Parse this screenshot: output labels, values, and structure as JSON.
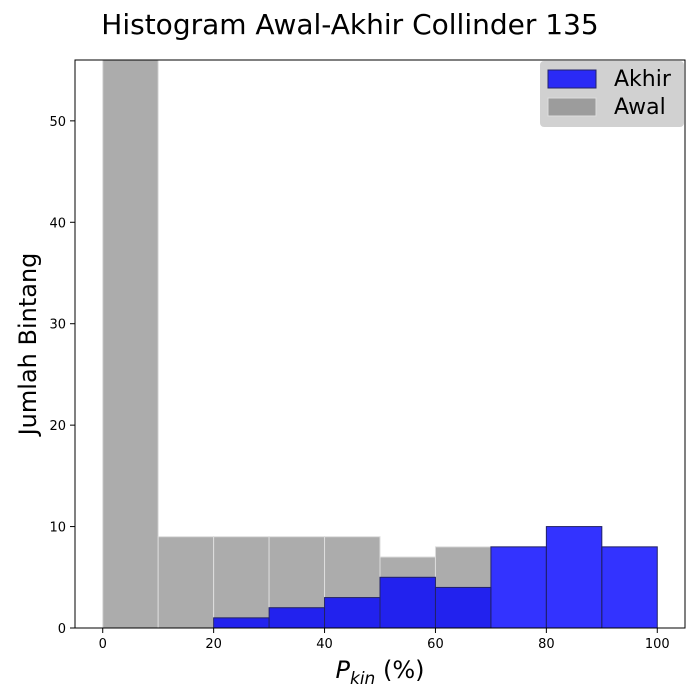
{
  "chart_data": {
    "type": "bar",
    "title": "Histogram Awal-Akhir Collinder 135",
    "xlabel_main": "P",
    "xlabel_sub": "kin",
    "xlabel_suffix": " (%)",
    "ylabel": "Jumlah Bintang",
    "bin_edges": [
      0,
      10,
      20,
      30,
      40,
      50,
      60,
      70,
      80,
      90,
      100
    ],
    "xlim": [
      -5,
      105
    ],
    "ylim": [
      0,
      56
    ],
    "x_ticks": [
      0,
      20,
      40,
      60,
      80,
      100
    ],
    "y_ticks": [
      0,
      10,
      20,
      30,
      40,
      50
    ],
    "legend_position": "top-right",
    "grid": false,
    "series": [
      {
        "name": "Awal",
        "color": "#808080",
        "edge": "#dddddd",
        "opacity": 0.65,
        "values": [
          57,
          9,
          9,
          9,
          9,
          7,
          8,
          0,
          0,
          0
        ]
      },
      {
        "name": "Akhir",
        "color": "#0000ff",
        "edge": "#222266",
        "opacity": 0.8,
        "values": [
          0,
          0,
          1,
          2,
          3,
          5,
          4,
          8,
          10,
          8
        ]
      }
    ],
    "legend_order": [
      "Akhir",
      "Awal"
    ]
  }
}
